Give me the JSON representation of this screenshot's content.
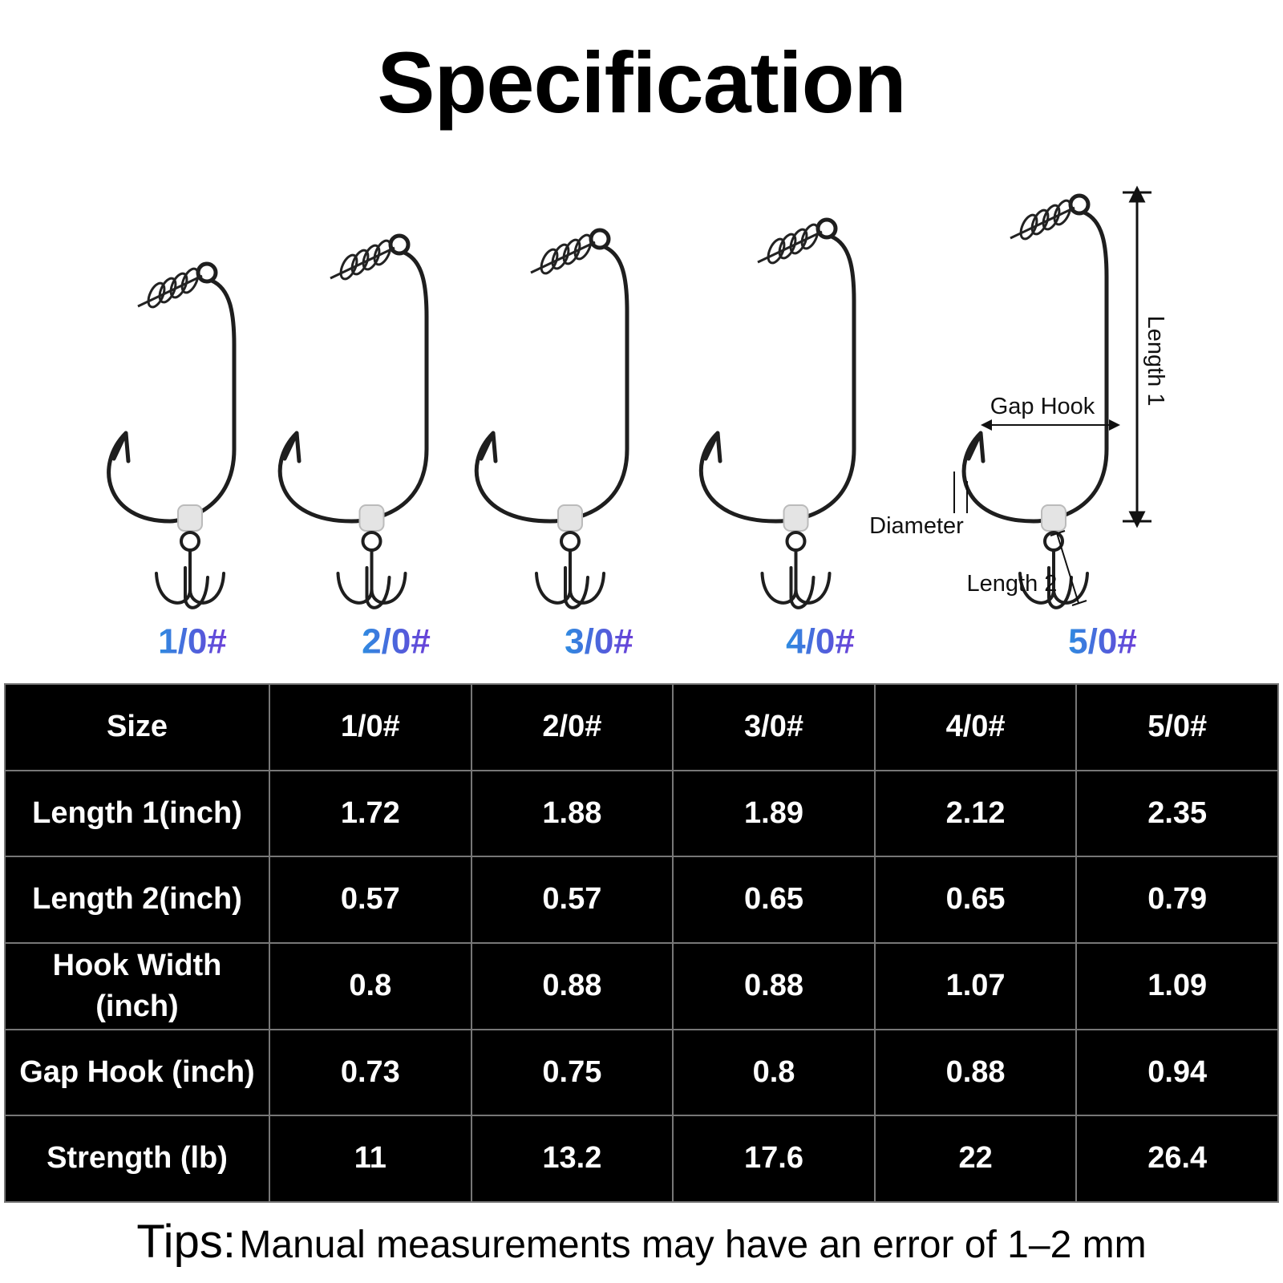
{
  "title": "Specification",
  "hooks": [
    {
      "label": "1/0#"
    },
    {
      "label": "2/0#"
    },
    {
      "label": "3/0#"
    },
    {
      "label": "4/0#"
    },
    {
      "label": "5/0#"
    }
  ],
  "annotations": {
    "length1": "Length 1",
    "gap_hook": "Gap Hook",
    "diameter": "Diameter",
    "length2": "Length 2"
  },
  "table": {
    "header": [
      "Size",
      "1/0#",
      "2/0#",
      "3/0#",
      "4/0#",
      "5/0#"
    ],
    "rows": [
      [
        "Length 1(inch)",
        "1.72",
        "1.88",
        "1.89",
        "2.12",
        "2.35"
      ],
      [
        "Length 2(inch)",
        "0.57",
        "0.57",
        "0.65",
        "0.65",
        "0.79"
      ],
      [
        "Hook Width (inch)",
        "0.8",
        "0.88",
        "0.88",
        "1.07",
        "1.09"
      ],
      [
        "Gap Hook (inch)",
        "0.73",
        "0.75",
        "0.8",
        "0.88",
        "0.94"
      ],
      [
        "Strength (lb)",
        "11",
        "13.2",
        "17.6",
        "22",
        "26.4"
      ]
    ]
  },
  "tips": {
    "label": "Tips:",
    "text": "Manual measurements may have  an error of 1–2 mm"
  }
}
